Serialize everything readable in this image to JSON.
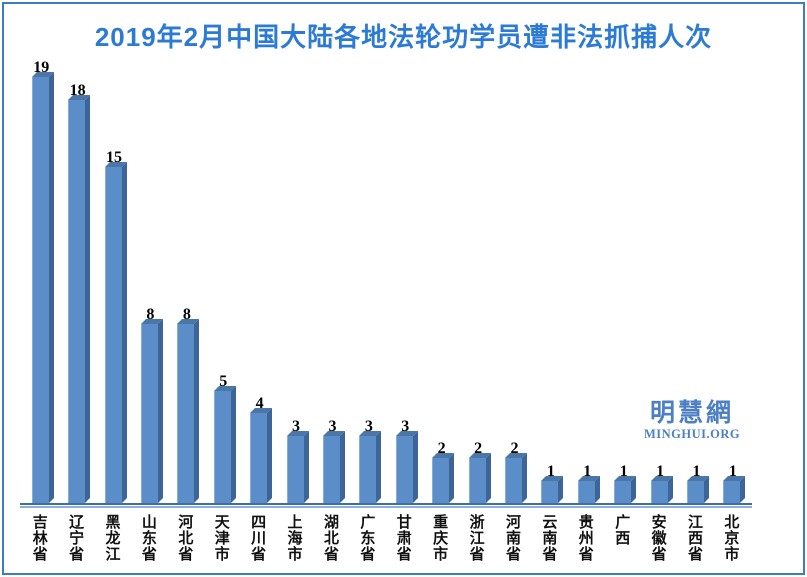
{
  "page": {
    "background": "#ffffff",
    "border_color": "#3b7cc2",
    "title_color": "#2b7ad6"
  },
  "watermark": {
    "logo_text": "明慧網",
    "site_text": "MINGHUI.ORG",
    "color": "#4d7fc4"
  },
  "chart_data": {
    "type": "bar",
    "title": "2019年2月中国大陆各地法轮功学员遭非法抓捕人次",
    "categories": [
      "吉林省",
      "辽宁省",
      "黑龙江",
      "山东省",
      "河北省",
      "天津市",
      "四川省",
      "上海市",
      "湖北省",
      "广东省",
      "甘肃省",
      "重庆市",
      "浙江省",
      "河南省",
      "云南省",
      "贵州省",
      "广西",
      "安徽省",
      "江西省",
      "北京市"
    ],
    "values": [
      19,
      18,
      15,
      8,
      8,
      5,
      4,
      3,
      3,
      3,
      3,
      2,
      2,
      2,
      1,
      1,
      1,
      1,
      1,
      1
    ],
    "xlabel": "",
    "ylabel": "",
    "ylim": [
      0,
      20
    ],
    "grid": false,
    "legend": false,
    "data_labels": true,
    "bar_style": "3d",
    "colors": {
      "bar_front": "#5b8dc8",
      "bar_top": "#4a77a8",
      "bar_side": "#3d6597",
      "bar_highlight": "#86acd8",
      "axis_dark": "#3f6da6",
      "axis_light": "#8cb2dc",
      "label_color": "#111111"
    }
  }
}
